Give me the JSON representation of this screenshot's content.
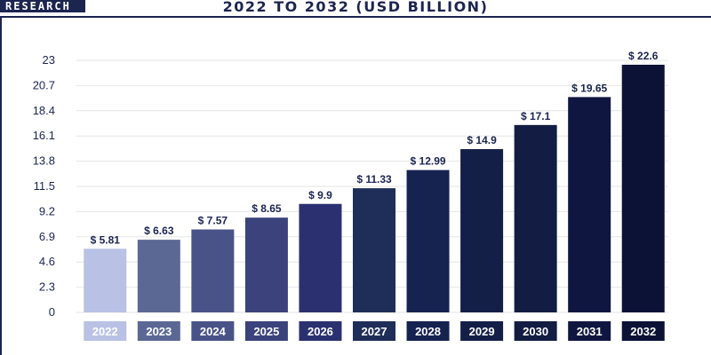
{
  "brand": {
    "logo_text": "RESEARCH"
  },
  "colors": {
    "frame": "#1c2450",
    "grid": "#e6e6e6",
    "axis_text": "#1c2450",
    "bar_gradient": [
      "#b9c2e4",
      "#5c6894",
      "#4a5388",
      "#3b427c",
      "#2b3170",
      "#1f2e58",
      "#162250",
      "#141f48",
      "#131c42",
      "#0f1740",
      "#0b1236"
    ]
  },
  "chart_data": {
    "type": "bar",
    "title": "2022 TO 2032 (USD BILLION)",
    "categories": [
      "2022",
      "2023",
      "2024",
      "2025",
      "2026",
      "2027",
      "2028",
      "2029",
      "2030",
      "2031",
      "2032"
    ],
    "values": [
      5.81,
      6.63,
      7.57,
      8.65,
      9.9,
      11.33,
      12.99,
      14.9,
      17.1,
      19.65,
      22.6
    ],
    "value_labels": [
      "$ 5.81",
      "$ 6.63",
      "$ 7.57",
      "$ 8.65",
      "$ 9.9",
      "$ 11.33",
      "$ 12.99",
      "$ 14.9",
      "$ 17.1",
      "$ 19.65",
      "$ 22.6"
    ],
    "yticks": [
      "0",
      "2.3",
      "4.6",
      "6.9",
      "9.2",
      "11.5",
      "13.8",
      "16.1",
      "18.4",
      "20.7",
      "23"
    ],
    "ylim": [
      0,
      23
    ],
    "xlabel": "",
    "ylabel": "",
    "grid": true,
    "legend": "none"
  }
}
